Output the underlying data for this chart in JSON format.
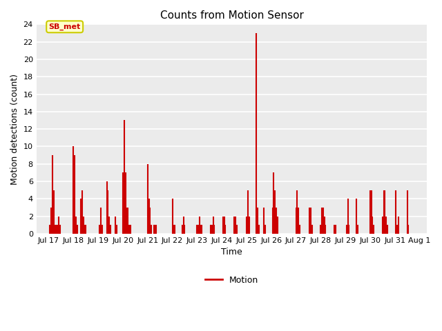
{
  "title": "Counts from Motion Sensor",
  "xlabel": "Time",
  "ylabel": "Motion detections (count)",
  "legend_label": "Motion",
  "line_color": "#cc0000",
  "bg_color": "#ebebeb",
  "annotation_text": "SB_met",
  "annotation_bg": "#ffffcc",
  "annotation_border": "#cccc00",
  "annotation_text_color": "#cc0000",
  "ylim": [
    0,
    24
  ],
  "yticks": [
    0,
    2,
    4,
    6,
    8,
    10,
    12,
    14,
    16,
    18,
    20,
    22,
    24
  ],
  "data_points": [
    [
      17.05,
      1
    ],
    [
      17.1,
      3
    ],
    [
      17.15,
      9
    ],
    [
      17.2,
      5
    ],
    [
      17.25,
      1
    ],
    [
      17.3,
      1
    ],
    [
      17.35,
      1
    ],
    [
      17.4,
      2
    ],
    [
      17.45,
      1
    ],
    [
      18.0,
      10
    ],
    [
      18.05,
      9
    ],
    [
      18.1,
      2
    ],
    [
      18.15,
      1
    ],
    [
      18.3,
      4
    ],
    [
      18.35,
      5
    ],
    [
      18.4,
      2
    ],
    [
      18.45,
      1
    ],
    [
      18.5,
      1
    ],
    [
      19.05,
      1
    ],
    [
      19.1,
      3
    ],
    [
      19.15,
      1
    ],
    [
      19.35,
      6
    ],
    [
      19.4,
      5
    ],
    [
      19.45,
      2
    ],
    [
      19.5,
      1
    ],
    [
      19.7,
      2
    ],
    [
      19.75,
      1
    ],
    [
      20.0,
      7
    ],
    [
      20.05,
      13
    ],
    [
      20.1,
      7
    ],
    [
      20.15,
      3
    ],
    [
      20.2,
      3
    ],
    [
      20.25,
      1
    ],
    [
      20.3,
      1
    ],
    [
      21.0,
      8
    ],
    [
      21.05,
      4
    ],
    [
      21.1,
      3
    ],
    [
      21.15,
      1
    ],
    [
      21.25,
      1
    ],
    [
      21.3,
      1
    ],
    [
      21.35,
      1
    ],
    [
      22.0,
      4
    ],
    [
      22.05,
      1
    ],
    [
      22.1,
      1
    ],
    [
      22.4,
      1
    ],
    [
      22.45,
      2
    ],
    [
      22.5,
      1
    ],
    [
      23.0,
      1
    ],
    [
      23.05,
      1
    ],
    [
      23.1,
      2
    ],
    [
      23.15,
      1
    ],
    [
      23.2,
      1
    ],
    [
      23.55,
      1
    ],
    [
      23.6,
      1
    ],
    [
      23.65,
      2
    ],
    [
      23.7,
      1
    ],
    [
      24.05,
      2
    ],
    [
      24.1,
      2
    ],
    [
      24.15,
      1
    ],
    [
      24.5,
      2
    ],
    [
      24.55,
      2
    ],
    [
      24.6,
      1
    ],
    [
      25.0,
      2
    ],
    [
      25.05,
      5
    ],
    [
      25.1,
      2
    ],
    [
      25.4,
      23
    ],
    [
      25.45,
      3
    ],
    [
      25.5,
      1
    ],
    [
      25.7,
      3
    ],
    [
      25.75,
      1
    ],
    [
      26.05,
      3
    ],
    [
      26.1,
      7
    ],
    [
      26.15,
      5
    ],
    [
      26.2,
      3
    ],
    [
      26.25,
      2
    ],
    [
      27.0,
      3
    ],
    [
      27.05,
      5
    ],
    [
      27.1,
      3
    ],
    [
      27.15,
      1
    ],
    [
      27.55,
      3
    ],
    [
      27.6,
      3
    ],
    [
      27.65,
      1
    ],
    [
      28.0,
      1
    ],
    [
      28.05,
      3
    ],
    [
      28.1,
      3
    ],
    [
      28.15,
      2
    ],
    [
      28.2,
      1
    ],
    [
      28.55,
      1
    ],
    [
      28.6,
      1
    ],
    [
      29.05,
      1
    ],
    [
      29.1,
      4
    ],
    [
      29.15,
      1
    ],
    [
      29.45,
      4
    ],
    [
      29.5,
      1
    ],
    [
      30.0,
      5
    ],
    [
      30.05,
      5
    ],
    [
      30.1,
      2
    ],
    [
      30.15,
      1
    ],
    [
      30.5,
      2
    ],
    [
      30.55,
      5
    ],
    [
      30.6,
      5
    ],
    [
      30.65,
      2
    ],
    [
      30.7,
      1
    ],
    [
      31.05,
      5
    ],
    [
      31.1,
      1
    ],
    [
      31.15,
      2
    ],
    [
      31.5,
      5
    ],
    [
      31.55,
      1
    ]
  ],
  "xtick_positions": [
    17,
    18,
    19,
    20,
    21,
    22,
    23,
    24,
    25,
    26,
    27,
    28,
    29,
    30,
    31,
    32
  ],
  "xtick_labels": [
    "Jul 17",
    "Jul 18",
    "Jul 19",
    "Jul 20",
    "Jul 21",
    "Jul 22",
    "Jul 23",
    "Jul 24",
    "Jul 25",
    "Jul 26",
    "Jul 27",
    "Jul 28",
    "Jul 29",
    "Jul 30",
    "Jul 31",
    "Aug 1"
  ],
  "xlim": [
    16.5,
    32.3
  ]
}
